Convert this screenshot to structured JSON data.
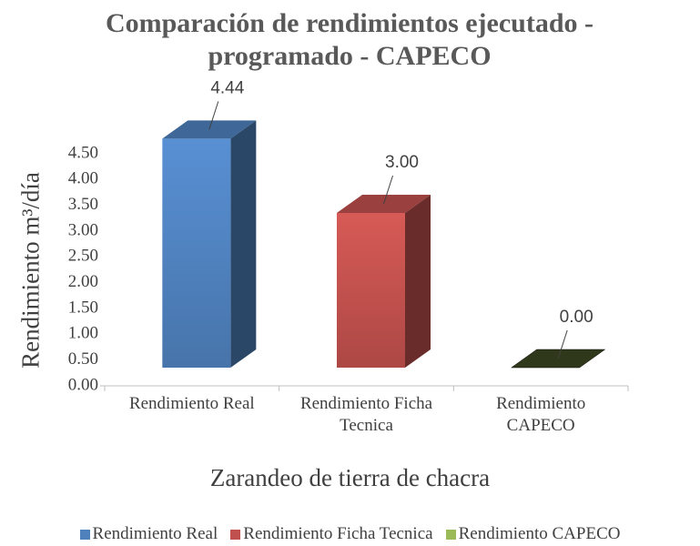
{
  "chart_data": {
    "type": "bar",
    "title": "Comparación de rendimientos ejecutado - programado - CAPECO",
    "x_label": "Zarandeo de tierra de chacra",
    "y_label": "Rendimiento m³/día",
    "categories": [
      "Rendimiento Real",
      "Rendimiento Ficha Tecnica",
      "Rendimiento CAPECO"
    ],
    "values": [
      4.44,
      3,
      0
    ],
    "value_labels": [
      "4.44",
      "3.00",
      "0.00"
    ],
    "colors": [
      "#4f81bd",
      "#c0504d",
      "#9bbb59"
    ],
    "ylim": [
      0,
      4.5
    ],
    "yticks": [
      {
        "value": 0,
        "label": "0.00"
      },
      {
        "value": 0.5,
        "label": "0.50"
      },
      {
        "value": 1,
        "label": "1.00"
      },
      {
        "value": 1.5,
        "label": "1.50"
      },
      {
        "value": 2,
        "label": "2.00"
      },
      {
        "value": 2.5,
        "label": "2.50"
      },
      {
        "value": 3,
        "label": "3.00"
      },
      {
        "value": 3.5,
        "label": "3.50"
      },
      {
        "value": 4,
        "label": "4.00"
      },
      {
        "value": 4.5,
        "label": "4.50"
      }
    ],
    "grid": false,
    "legend": "bottom"
  }
}
